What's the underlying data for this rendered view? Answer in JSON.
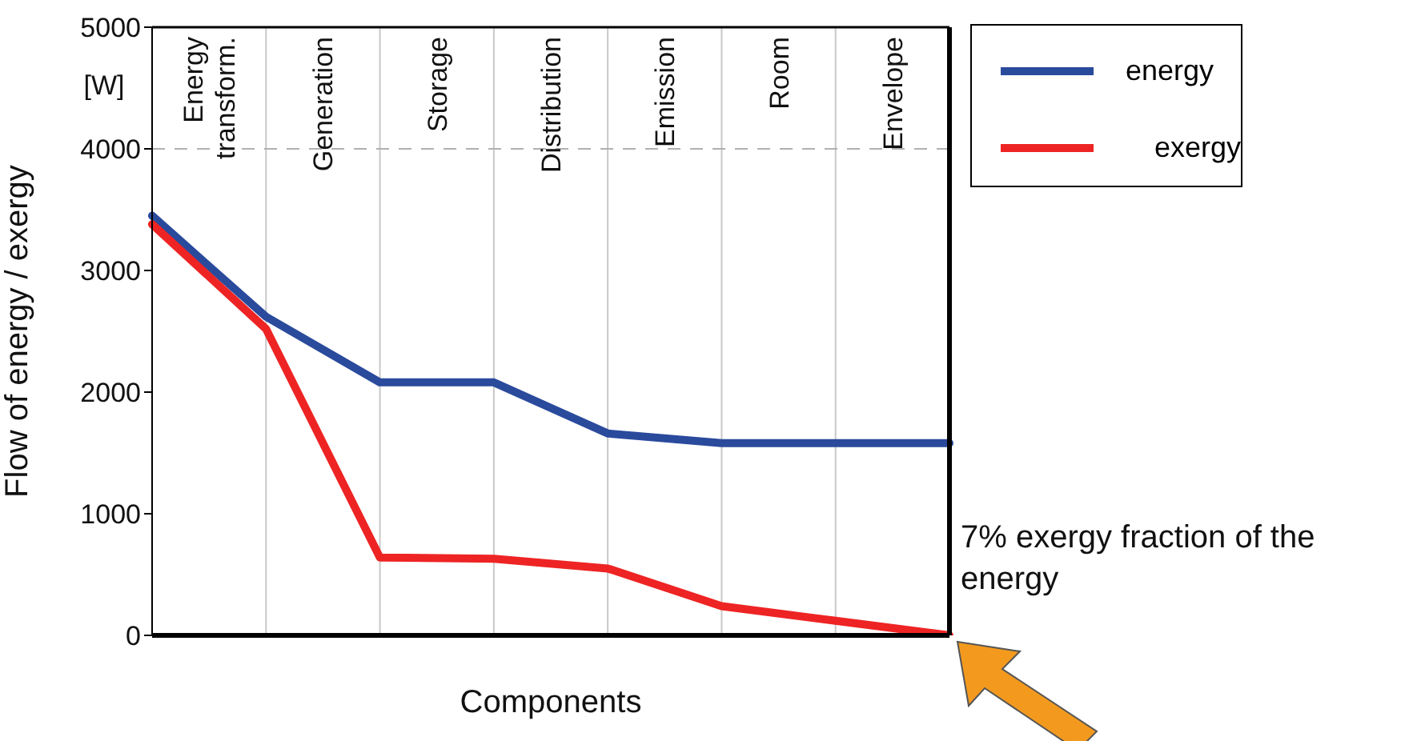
{
  "chart_data": {
    "type": "line",
    "xlabel": "Components",
    "ylabel": "Flow of energy / exergy",
    "categories": [
      null,
      null,
      null,
      null,
      null,
      null,
      null,
      null
    ],
    "ylim": [
      0,
      5000
    ],
    "yticks": [
      0,
      1000,
      2000,
      3000,
      4000,
      5000
    ],
    "grid": "x",
    "legend": "top right",
    "marker": "none",
    "line_style": "solid",
    "ref_lines": [
      {
        "axis": "y",
        "value": 4000,
        "color": "#b0b0b0",
        "line_style": "dashed"
      }
    ],
    "series": [
      {
        "name": "energy",
        "color": "#2a4a9c",
        "values": [
          3450,
          2620,
          2080,
          2080,
          1660,
          1580,
          1580,
          1580
        ]
      },
      {
        "name": "exergy",
        "color": "#ee2424",
        "values": [
          3380,
          2520,
          640,
          630,
          550,
          240,
          120,
          0
        ]
      }
    ],
    "annotations": [
      "[W]",
      "Energy transform.",
      "Generation",
      "Storage",
      "Distribution",
      "Emission",
      "Room",
      "Envelope",
      "7% exergy fraction of the energy"
    ]
  }
}
